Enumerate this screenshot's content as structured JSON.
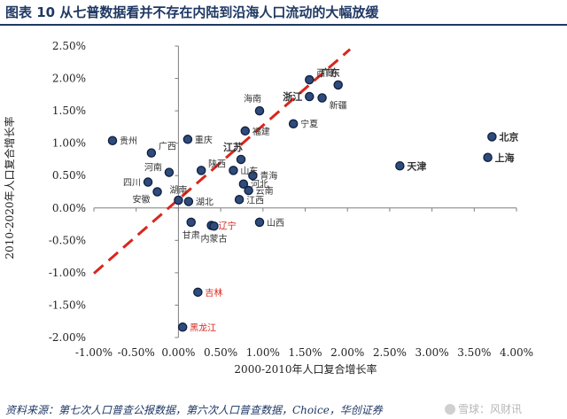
{
  "figure": {
    "title": "图表 10   从七普数据看并不存在内陆到沿海人口流动的大幅放缓",
    "source": "资料来源：第七次人口普查公报数据，第六次人口普查数据，Choice，华创证券",
    "watermark": "雪球：风财讯"
  },
  "colors": {
    "accent": "#1f3864",
    "marker": "#2f4b7c",
    "trend": "#d9261c",
    "highlight_label": "#d9261c"
  },
  "chart_data": {
    "type": "scatter",
    "title": "",
    "xlabel": "2000-2010年人口复合增长率",
    "ylabel": "2010-2020年人口复合增长率",
    "xlim": [
      -0.01,
      0.04
    ],
    "ylim": [
      -0.02,
      0.025
    ],
    "xticks": [
      -0.01,
      -0.005,
      0.0,
      0.005,
      0.01,
      0.015,
      0.02,
      0.025,
      0.03,
      0.035,
      0.04
    ],
    "xtick_labels": [
      "-1.00%",
      "-0.50%",
      "0.00%",
      "0.50%",
      "1.00%",
      "1.50%",
      "2.00%",
      "2.50%",
      "3.00%",
      "3.50%",
      "4.00%"
    ],
    "yticks": [
      0.025,
      0.02,
      0.015,
      0.01,
      0.005,
      0.0,
      -0.005,
      -0.01,
      -0.015,
      -0.02
    ],
    "ytick_labels": [
      "2.50%",
      "2.00%",
      "1.50%",
      "1.00%",
      "0.50%",
      "0.00%",
      "-0.50%",
      "-1.00%",
      "-1.50%",
      "-2.00%"
    ],
    "grid": false,
    "trend_line": {
      "style": "dashed",
      "points": [
        [
          -0.01,
          -0.0101
        ],
        [
          0.0203,
          0.0245
        ]
      ]
    },
    "points": [
      {
        "name": "广东",
        "x": 0.0189,
        "y": 0.019,
        "bold": true,
        "color": "dark",
        "label_pos": "top-left"
      },
      {
        "name": "西藏",
        "x": 0.0155,
        "y": 0.0198,
        "bold": false,
        "color": "dark",
        "label_pos": "right-up"
      },
      {
        "name": "浙江",
        "x": 0.0155,
        "y": 0.0172,
        "bold": true,
        "color": "dark",
        "label_pos": "left"
      },
      {
        "name": "新疆",
        "x": 0.017,
        "y": 0.017,
        "bold": false,
        "color": "dark",
        "label_pos": "right-down"
      },
      {
        "name": "海南",
        "x": 0.0096,
        "y": 0.015,
        "bold": false,
        "color": "dark",
        "label_pos": "top-left"
      },
      {
        "name": "宁夏",
        "x": 0.0136,
        "y": 0.013,
        "bold": false,
        "color": "dark",
        "label_pos": "right"
      },
      {
        "name": "福建",
        "x": 0.0079,
        "y": 0.0119,
        "bold": false,
        "color": "dark",
        "label_pos": "right"
      },
      {
        "name": "北京",
        "x": 0.0371,
        "y": 0.011,
        "bold": true,
        "color": "dark",
        "label_pos": "right"
      },
      {
        "name": "上海",
        "x": 0.0366,
        "y": 0.0078,
        "bold": true,
        "color": "dark",
        "label_pos": "right"
      },
      {
        "name": "天津",
        "x": 0.0262,
        "y": 0.0065,
        "bold": true,
        "color": "dark",
        "label_pos": "right"
      },
      {
        "name": "贵州",
        "x": -0.0078,
        "y": 0.0104,
        "bold": false,
        "color": "dark",
        "label_pos": "right"
      },
      {
        "name": "重庆",
        "x": 0.0011,
        "y": 0.0106,
        "bold": false,
        "color": "dark",
        "label_pos": "right"
      },
      {
        "name": "广西",
        "x": -0.0032,
        "y": 0.0085,
        "bold": false,
        "color": "dark",
        "label_pos": "right-up"
      },
      {
        "name": "江苏",
        "x": 0.0074,
        "y": 0.0075,
        "bold": true,
        "color": "dark",
        "label_pos": "top-left"
      },
      {
        "name": "河南",
        "x": -0.0011,
        "y": 0.0055,
        "bold": false,
        "color": "dark",
        "label_pos": "left-up"
      },
      {
        "name": "陕西",
        "x": 0.0027,
        "y": 0.0058,
        "bold": false,
        "color": "dark",
        "label_pos": "right-up"
      },
      {
        "name": "山东",
        "x": 0.0065,
        "y": 0.0058,
        "bold": false,
        "color": "dark",
        "label_pos": "right"
      },
      {
        "name": "青海",
        "x": 0.0088,
        "y": 0.005,
        "bold": false,
        "color": "dark",
        "label_pos": "right"
      },
      {
        "name": "四川",
        "x": -0.0036,
        "y": 0.004,
        "bold": false,
        "color": "dark",
        "label_pos": "left"
      },
      {
        "name": "河北",
        "x": 0.0077,
        "y": 0.0037,
        "bold": false,
        "color": "dark",
        "label_pos": "right"
      },
      {
        "name": "云南",
        "x": 0.0083,
        "y": 0.0027,
        "bold": false,
        "color": "dark",
        "label_pos": "right"
      },
      {
        "name": "安徽",
        "x": -0.0025,
        "y": 0.0025,
        "bold": false,
        "color": "dark",
        "label_pos": "left-down"
      },
      {
        "name": "湖南",
        "x": 0.0,
        "y": 0.0012,
        "bold": false,
        "color": "dark",
        "label_pos": "top"
      },
      {
        "name": "湖北",
        "x": 0.0012,
        "y": 0.001,
        "bold": false,
        "color": "dark",
        "label_pos": "right"
      },
      {
        "name": "江西",
        "x": 0.0072,
        "y": 0.0013,
        "bold": false,
        "color": "dark",
        "label_pos": "right"
      },
      {
        "name": "辽宁",
        "x": 0.0039,
        "y": -0.0027,
        "bold": false,
        "color": "red",
        "label_pos": "right"
      },
      {
        "name": "甘肃",
        "x": 0.0015,
        "y": -0.0022,
        "bold": false,
        "color": "dark",
        "label_pos": "bottom"
      },
      {
        "name": "内蒙古",
        "x": 0.0042,
        "y": -0.0028,
        "bold": false,
        "color": "dark",
        "label_pos": "bottom"
      },
      {
        "name": "山西",
        "x": 0.0096,
        "y": -0.0022,
        "bold": false,
        "color": "dark",
        "label_pos": "right"
      },
      {
        "name": "吉林",
        "x": 0.0023,
        "y": -0.013,
        "bold": false,
        "color": "red",
        "label_pos": "right"
      },
      {
        "name": "黑龙江",
        "x": 0.0005,
        "y": -0.0184,
        "bold": false,
        "color": "red",
        "label_pos": "right"
      }
    ]
  }
}
